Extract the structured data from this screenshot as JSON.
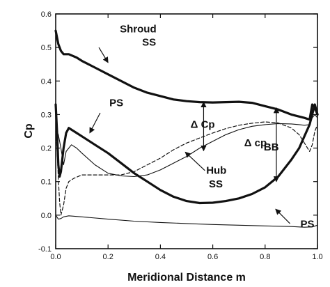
{
  "chart_data": {
    "type": "line",
    "title": "",
    "xlabel": "Meridional Distance  m",
    "ylabel": "Cp",
    "xlim": [
      0.0,
      1.0
    ],
    "ylim": [
      -0.1,
      0.6
    ],
    "x_ticks": [
      "0.0",
      "0.2",
      "0.4",
      "0.6",
      "0.8",
      "1.0"
    ],
    "y_ticks": [
      "-0.1",
      "0.0",
      "0.1",
      "0.2",
      "0.3",
      "0.4",
      "0.5",
      "0.6"
    ],
    "grid": false,
    "series": [
      {
        "style": "thick-solid",
        "x": [
          0.0,
          0.01,
          0.02,
          0.03,
          0.05,
          0.08,
          0.1,
          0.15,
          0.2,
          0.25,
          0.3,
          0.35,
          0.4,
          0.45,
          0.5,
          0.55,
          0.6,
          0.65,
          0.7,
          0.75,
          0.8,
          0.85,
          0.9,
          0.95,
          0.97,
          0.98,
          0.99,
          1.0
        ],
        "y": [
          0.55,
          0.51,
          0.49,
          0.48,
          0.48,
          0.47,
          0.46,
          0.44,
          0.42,
          0.4,
          0.38,
          0.365,
          0.355,
          0.345,
          0.34,
          0.337,
          0.336,
          0.337,
          0.338,
          0.335,
          0.325,
          0.315,
          0.3,
          0.29,
          0.285,
          0.33,
          0.32,
          0.3
        ]
      },
      {
        "style": "thick-solid",
        "x": [
          0.0,
          0.005,
          0.01,
          0.015,
          0.02,
          0.03,
          0.04,
          0.05,
          0.06,
          0.08,
          0.1,
          0.15,
          0.2,
          0.25,
          0.3,
          0.35,
          0.4,
          0.45,
          0.5,
          0.55,
          0.6,
          0.65,
          0.7,
          0.75,
          0.8,
          0.85,
          0.9,
          0.93,
          0.95,
          0.97,
          0.98,
          0.99,
          1.0
        ],
        "y": [
          0.33,
          0.25,
          0.15,
          0.115,
          0.13,
          0.2,
          0.245,
          0.26,
          0.255,
          0.245,
          0.235,
          0.21,
          0.185,
          0.155,
          0.125,
          0.1,
          0.075,
          0.055,
          0.042,
          0.036,
          0.037,
          0.042,
          0.05,
          0.063,
          0.083,
          0.115,
          0.165,
          0.2,
          0.235,
          0.27,
          0.3,
          0.33,
          0.3
        ]
      },
      {
        "style": "thin-solid",
        "x": [
          0.0,
          0.01,
          0.02,
          0.03,
          0.04,
          0.05,
          0.06,
          0.08,
          0.1,
          0.15,
          0.2,
          0.25,
          0.3,
          0.35,
          0.4,
          0.45,
          0.5,
          0.55,
          0.6,
          0.65,
          0.7,
          0.75,
          0.8,
          0.85,
          0.9,
          0.93,
          0.95,
          0.97,
          0.98,
          0.99,
          1.0
        ],
        "y": [
          0.26,
          0.24,
          0.2,
          0.15,
          0.19,
          0.2,
          0.21,
          0.2,
          0.185,
          0.15,
          0.125,
          0.117,
          0.115,
          0.12,
          0.135,
          0.155,
          0.175,
          0.2,
          0.22,
          0.24,
          0.255,
          0.265,
          0.27,
          0.273,
          0.272,
          0.27,
          0.268,
          0.27,
          0.29,
          0.3,
          0.29
        ]
      },
      {
        "style": "thin-solid",
        "x": [
          0.0,
          0.01,
          0.02,
          0.03,
          0.05,
          0.1,
          0.2,
          0.3,
          0.4,
          0.5,
          0.6,
          0.7,
          0.8,
          0.9,
          0.95,
          0.98,
          1.0
        ],
        "y": [
          0.0,
          -0.012,
          -0.01,
          -0.005,
          -0.002,
          -0.005,
          -0.012,
          -0.018,
          -0.022,
          -0.025,
          -0.028,
          -0.03,
          -0.032,
          -0.034,
          -0.036,
          -0.035,
          -0.03
        ]
      },
      {
        "style": "dashed",
        "x": [
          0.0,
          0.005,
          0.01,
          0.015,
          0.02,
          0.03,
          0.04,
          0.05,
          0.07,
          0.1,
          0.15,
          0.2,
          0.25,
          0.3,
          0.35,
          0.4,
          0.45,
          0.5,
          0.55,
          0.6,
          0.65,
          0.7,
          0.75,
          0.8,
          0.85,
          0.9,
          0.93,
          0.95,
          0.97,
          0.98,
          0.99,
          1.0
        ],
        "y": [
          0.25,
          0.2,
          0.11,
          0.04,
          0.0,
          0.03,
          0.08,
          0.1,
          0.11,
          0.12,
          0.12,
          0.12,
          0.12,
          0.13,
          0.15,
          0.17,
          0.195,
          0.215,
          0.23,
          0.245,
          0.258,
          0.268,
          0.274,
          0.278,
          0.275,
          0.26,
          0.24,
          0.215,
          0.19,
          0.21,
          0.25,
          0.27
        ]
      }
    ],
    "annotations": [
      {
        "text": "Shroud",
        "x": 0.245,
        "y": 0.545
      },
      {
        "text": "SS",
        "x": 0.33,
        "y": 0.505
      },
      {
        "text": "PS",
        "x": 0.205,
        "y": 0.325
      },
      {
        "text": "Δ Cp",
        "x": 0.515,
        "y": 0.26
      },
      {
        "text": "Δ cp",
        "x": 0.72,
        "y": 0.205
      },
      {
        "text": "BB",
        "x": 0.795,
        "y": 0.193
      },
      {
        "text": "Hub",
        "x": 0.575,
        "y": 0.123
      },
      {
        "text": "SS",
        "x": 0.585,
        "y": 0.083
      },
      {
        "text": "PS",
        "x": 0.935,
        "y": -0.037
      }
    ],
    "arrows": [
      {
        "kind": "leader",
        "from": [
          0.165,
          0.5
        ],
        "to": [
          0.2,
          0.455
        ]
      },
      {
        "kind": "leader",
        "from": [
          0.17,
          0.305
        ],
        "to": [
          0.13,
          0.245
        ]
      },
      {
        "kind": "leader",
        "from": [
          0.57,
          0.133
        ],
        "to": [
          0.495,
          0.188
        ]
      },
      {
        "kind": "leader",
        "from": [
          0.895,
          -0.025
        ],
        "to": [
          0.84,
          0.018
        ]
      },
      {
        "kind": "double",
        "from": [
          0.565,
          0.337
        ],
        "to": [
          0.565,
          0.192
        ]
      },
      {
        "kind": "double",
        "from": [
          0.843,
          0.32
        ],
        "to": [
          0.843,
          0.1
        ]
      }
    ]
  }
}
